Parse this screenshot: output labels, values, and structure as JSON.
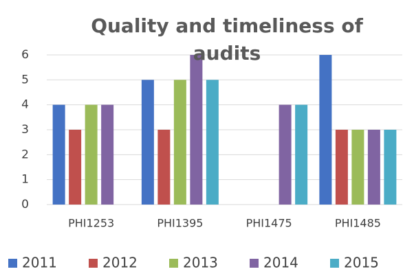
{
  "chart_data": {
    "type": "bar",
    "title": "Quality and timeliness of audits",
    "categories": [
      "PHI1253",
      "PHI1395",
      "PHI1475",
      "PHI1485"
    ],
    "series": [
      {
        "name": "2011",
        "color": "#4472c4",
        "values": [
          4,
          5,
          null,
          6
        ]
      },
      {
        "name": "2012",
        "color": "#c0504d",
        "values": [
          3,
          3,
          null,
          3
        ]
      },
      {
        "name": "2013",
        "color": "#9bbb59",
        "values": [
          4,
          5,
          null,
          3
        ]
      },
      {
        "name": "2014",
        "color": "#8064a2",
        "values": [
          4,
          6,
          4,
          3
        ]
      },
      {
        "name": "2015",
        "color": "#4bacc6",
        "values": [
          null,
          5,
          4,
          3
        ]
      }
    ],
    "ylim": [
      0,
      6
    ],
    "yticks": [
      0,
      1,
      2,
      3,
      4,
      5,
      6
    ],
    "grid": true,
    "legend": "bottom"
  }
}
